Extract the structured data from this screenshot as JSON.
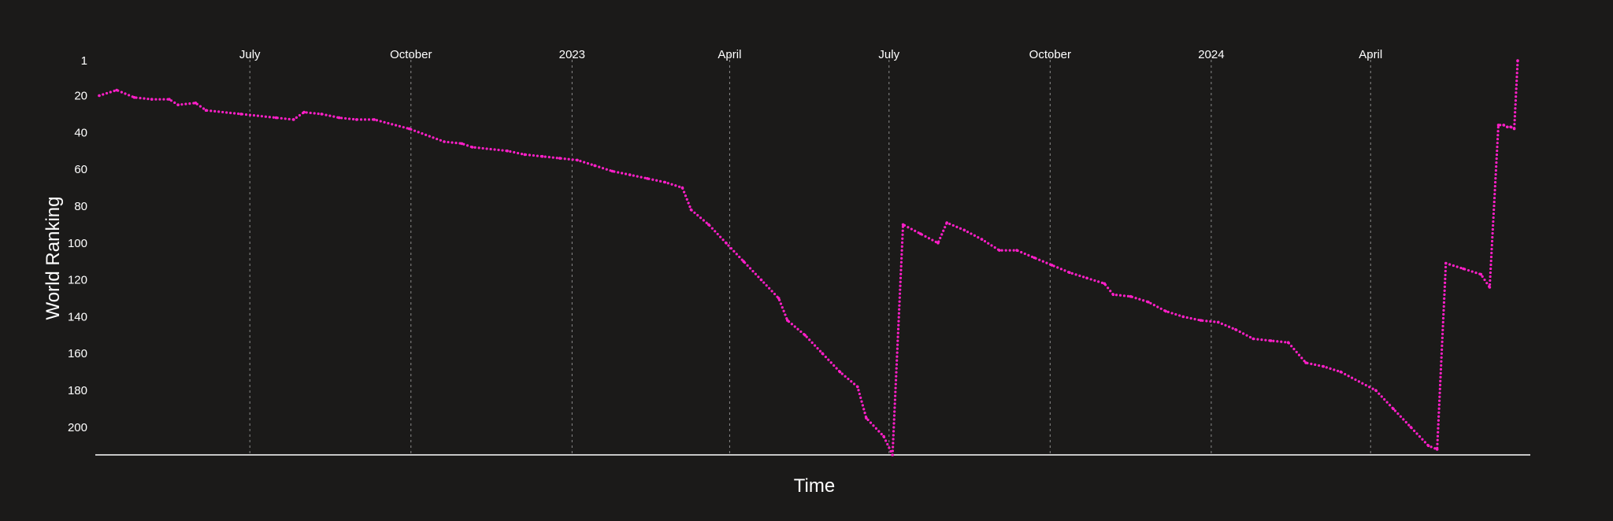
{
  "chart_data": {
    "type": "line",
    "xlabel": "Time",
    "ylabel": "World Ranking",
    "y_reversed": true,
    "ylim": [
      1,
      215
    ],
    "yticks": [
      1,
      20,
      40,
      60,
      80,
      100,
      120,
      140,
      160,
      180,
      200
    ],
    "xlim": [
      "2022-04-06",
      "2024-06-24"
    ],
    "x_labels_position": "top",
    "grid": "vertical dashed at labeled months",
    "xticks": [
      {
        "date": "2022-07-01",
        "label": "July"
      },
      {
        "date": "2022-10-01",
        "label": "October"
      },
      {
        "date": "2023-01-01",
        "label": "2023"
      },
      {
        "date": "2023-04-01",
        "label": "April"
      },
      {
        "date": "2023-07-01",
        "label": "July"
      },
      {
        "date": "2023-10-01",
        "label": "October"
      },
      {
        "date": "2024-01-01",
        "label": "2024"
      },
      {
        "date": "2024-04-01",
        "label": "April"
      }
    ],
    "colors": {
      "line": "#ff1fc8",
      "background": "#1b1a19",
      "text": "#ffffff"
    },
    "series": [
      {
        "style": "dotted",
        "points": [
          [
            "2022-04-06",
            20
          ],
          [
            "2022-04-16",
            17
          ],
          [
            "2022-04-26",
            21
          ],
          [
            "2022-05-06",
            22
          ],
          [
            "2022-05-16",
            22
          ],
          [
            "2022-05-21",
            25
          ],
          [
            "2022-05-31",
            24
          ],
          [
            "2022-06-06",
            28
          ],
          [
            "2022-06-26",
            30
          ],
          [
            "2022-07-16",
            32
          ],
          [
            "2022-07-26",
            33
          ],
          [
            "2022-08-01",
            29
          ],
          [
            "2022-08-11",
            30
          ],
          [
            "2022-08-21",
            32
          ],
          [
            "2022-08-31",
            33
          ],
          [
            "2022-09-10",
            33
          ],
          [
            "2022-09-30",
            38
          ],
          [
            "2022-10-20",
            45
          ],
          [
            "2022-10-30",
            46
          ],
          [
            "2022-11-05",
            48
          ],
          [
            "2022-11-25",
            50
          ],
          [
            "2022-12-05",
            52
          ],
          [
            "2022-12-15",
            53
          ],
          [
            "2022-12-25",
            54
          ],
          [
            "2023-01-04",
            55
          ],
          [
            "2023-01-14",
            58
          ],
          [
            "2023-01-24",
            61
          ],
          [
            "2023-02-03",
            63
          ],
          [
            "2023-02-13",
            65
          ],
          [
            "2023-02-23",
            67
          ],
          [
            "2023-03-05",
            70
          ],
          [
            "2023-03-10",
            82
          ],
          [
            "2023-03-20",
            90
          ],
          [
            "2023-03-30",
            100
          ],
          [
            "2023-04-09",
            110
          ],
          [
            "2023-04-19",
            120
          ],
          [
            "2023-04-29",
            130
          ],
          [
            "2023-05-04",
            142
          ],
          [
            "2023-05-14",
            150
          ],
          [
            "2023-05-24",
            160
          ],
          [
            "2023-06-03",
            170
          ],
          [
            "2023-06-13",
            178
          ],
          [
            "2023-06-18",
            195
          ],
          [
            "2023-06-28",
            205
          ],
          [
            "2023-07-03",
            215
          ],
          [
            "2023-07-09",
            90
          ],
          [
            "2023-07-19",
            95
          ],
          [
            "2023-07-29",
            100
          ],
          [
            "2023-08-03",
            89
          ],
          [
            "2023-08-13",
            93
          ],
          [
            "2023-08-23",
            98
          ],
          [
            "2023-09-02",
            104
          ],
          [
            "2023-09-12",
            104
          ],
          [
            "2023-09-22",
            108
          ],
          [
            "2023-10-02",
            112
          ],
          [
            "2023-10-12",
            116
          ],
          [
            "2023-10-22",
            119
          ],
          [
            "2023-11-01",
            122
          ],
          [
            "2023-11-06",
            128
          ],
          [
            "2023-11-16",
            129
          ],
          [
            "2023-11-26",
            132
          ],
          [
            "2023-12-06",
            137
          ],
          [
            "2023-12-16",
            140
          ],
          [
            "2023-12-26",
            142
          ],
          [
            "2024-01-05",
            143
          ],
          [
            "2024-01-15",
            147
          ],
          [
            "2024-01-25",
            152
          ],
          [
            "2024-02-04",
            153
          ],
          [
            "2024-02-14",
            154
          ],
          [
            "2024-02-24",
            165
          ],
          [
            "2024-03-05",
            167
          ],
          [
            "2024-03-15",
            170
          ],
          [
            "2024-04-04",
            180
          ],
          [
            "2024-04-14",
            190
          ],
          [
            "2024-04-24",
            200
          ],
          [
            "2024-05-04",
            210
          ],
          [
            "2024-05-09",
            212
          ],
          [
            "2024-05-14",
            111
          ],
          [
            "2024-05-24",
            114
          ],
          [
            "2024-06-03",
            117
          ],
          [
            "2024-06-08",
            124
          ],
          [
            "2024-06-13",
            36
          ],
          [
            "2024-06-16",
            36
          ],
          [
            "2024-06-18",
            37
          ],
          [
            "2024-06-20",
            37
          ],
          [
            "2024-06-22",
            38
          ],
          [
            "2024-06-24",
            1
          ]
        ]
      }
    ]
  }
}
